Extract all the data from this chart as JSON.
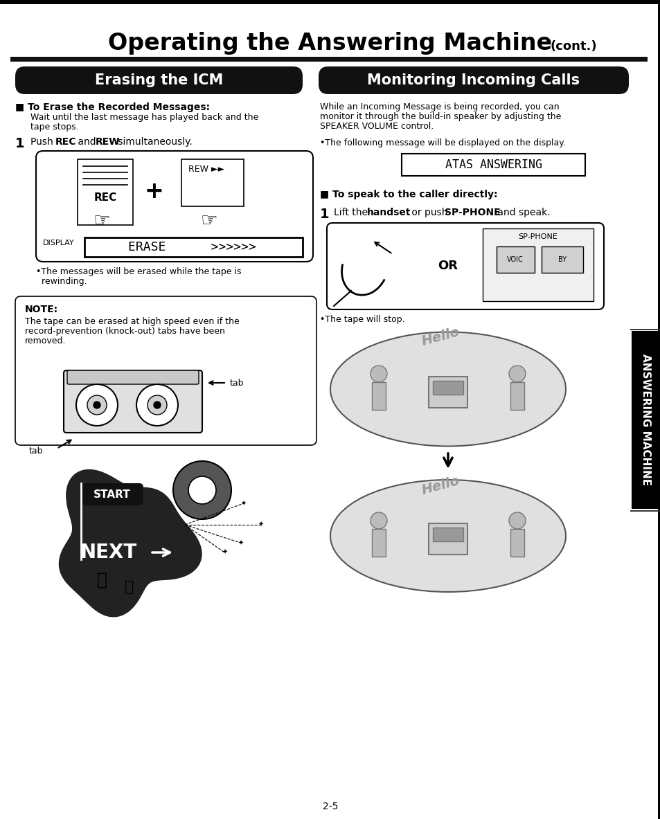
{
  "page_bg": "#ffffff",
  "title_main": "Operating the Answering Machine",
  "title_cont": "(cont.)",
  "section_left_title": "Erasing the ICM",
  "section_right_title": "Monitoring Incoming Calls",
  "left_heading": "■ To Erase the Recorded Messages:",
  "left_subtext1": "Wait until the last message has played back and the",
  "left_subtext2": "tape stops.",
  "step1_label": "1",
  "step1_text_a": "Push ",
  "step1_text_b": "REC",
  "step1_text_c": " and ",
  "step1_text_d": "REW",
  "step1_text_e": " simultaneously.",
  "display_label": "DISPLAY",
  "display_content": "ERASE      >>>>>>",
  "bullet_erase1": "•The messages will be erased while the tape is",
  "bullet_erase2": "  rewinding.",
  "note_title": "NOTE:",
  "note_line1": "The tape can be erased at high speed even if the",
  "note_line2": "record-prevention (knock-out) tabs have been",
  "note_line3": "removed.",
  "tab_right": "tab",
  "tab_left": "tab",
  "right_body1": "While an Incoming Message is being recorded, you can",
  "right_body2": "monitor it through the build-in speaker by adjusting the",
  "right_body3": "SPEAKER VOLUME control.",
  "right_bullet": "•The following message will be displayed on the display.",
  "atas_text": "ATAS ANSWERING",
  "right_heading2": "■ To speak to the caller directly:",
  "step1r_label": "1",
  "step1r_a": "Lift the ",
  "step1r_b": "handset",
  "step1r_c": " or push ",
  "step1r_d": "SP-PHONE",
  "step1r_e": " and speak.",
  "or_text": "OR",
  "sp_phone_text": "SP-PHONE",
  "voic_text": "VOIC",
  "by_text": "BY",
  "bullet_tape": "•The tape will stop.",
  "hello1": "Hello",
  "hello2": "Hello",
  "page_number": "2-5",
  "sidebar_text": "ANSWERING MACHINE",
  "rec_text": "REW ►►",
  "rec_label": "REC"
}
